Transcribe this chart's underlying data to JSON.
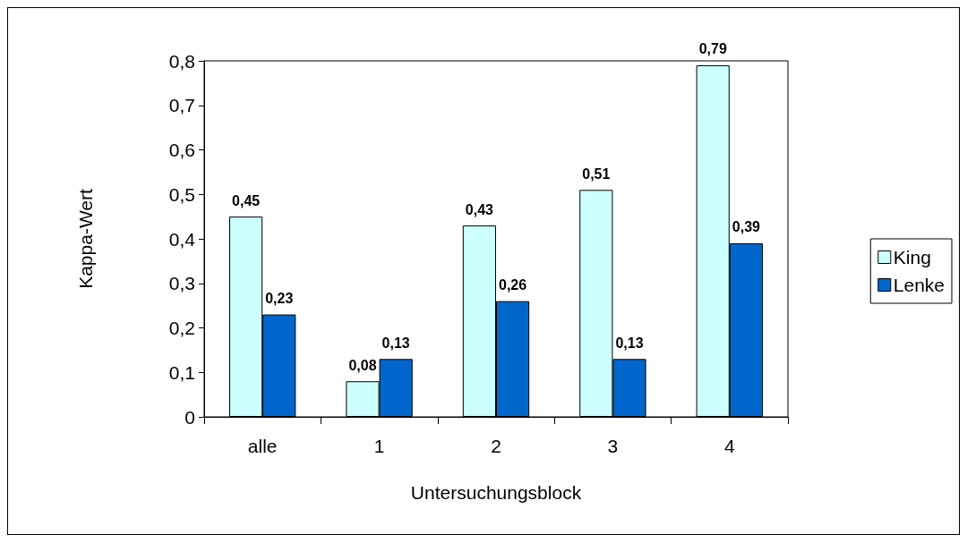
{
  "chart_data": {
    "type": "bar",
    "xlabel": "Untersuchungsblock",
    "ylabel": "Kappa-Wert",
    "categories": [
      "alle",
      "1",
      "2",
      "3",
      "4"
    ],
    "series": [
      {
        "name": "King",
        "color": "#ccffff",
        "values": [
          0.45,
          0.08,
          0.43,
          0.51,
          0.79
        ],
        "value_labels": [
          "0,45",
          "0,08",
          "0,43",
          "0,51",
          "0,79"
        ]
      },
      {
        "name": "Lenke",
        "color": "#0066cc",
        "values": [
          0.23,
          0.13,
          0.26,
          0.13,
          0.39
        ],
        "value_labels": [
          "0,23",
          "0,13",
          "0,26",
          "0,13",
          "0,39"
        ]
      }
    ],
    "ylim": [
      0,
      0.8
    ],
    "yticks": [
      0,
      {
        "value": 0.1,
        "label": "0,1"
      },
      {
        "value": 0.2,
        "label": "0,2"
      },
      {
        "value": 0.3,
        "label": "0,3"
      },
      {
        "value": 0.4,
        "label": "0,4"
      },
      {
        "value": 0.5,
        "label": "0,5"
      },
      {
        "value": 0.6,
        "label": "0,6"
      },
      {
        "value": 0.7,
        "label": "0,7"
      },
      {
        "value": 0.8,
        "label": "0,8"
      }
    ],
    "grid": false,
    "legend": "right"
  }
}
